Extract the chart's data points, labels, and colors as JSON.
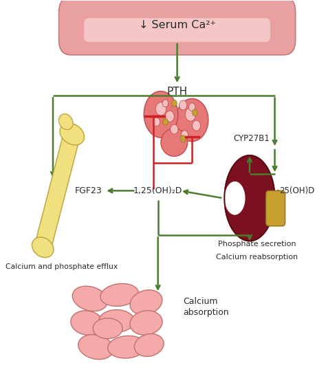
{
  "bg_color": "#ffffff",
  "green": "#4a7c2f",
  "red": "#cc2222",
  "serum_text": "↓ Serum Ca²⁺",
  "pth_text": "PTH",
  "cyp_text": "CYP27B1",
  "d125_text": "1,25(OH)₂D",
  "d25_text": "25(OH)D",
  "fgf_text": "FGF23",
  "bone_text": "Calcium and phosphate efflux",
  "kidney_text1": "Phosphate secretion",
  "kidney_text2": "Calcium reabsorption",
  "gut_text1": "Calcium",
  "gut_text2": "absorption",
  "text_color": "#2a2a2a",
  "tube_fill": "#e8a0a0",
  "tube_highlight": "#f8d0d0",
  "tube_edge": "#c87878",
  "gland_fill": "#e87878",
  "gland_edge": "#c05050",
  "gland_spot": "#f5c0c0",
  "gland_gold": "#c8a030",
  "bone_fill": "#f0e080",
  "bone_edge": "#c0a840",
  "kidney_fill": "#7a1020",
  "kidney_edge": "#5a0a10",
  "ureter_fill": "#c8a030",
  "ureter_edge": "#907020",
  "gut_fill": "#f5aaaa",
  "gut_edge": "#c07070"
}
